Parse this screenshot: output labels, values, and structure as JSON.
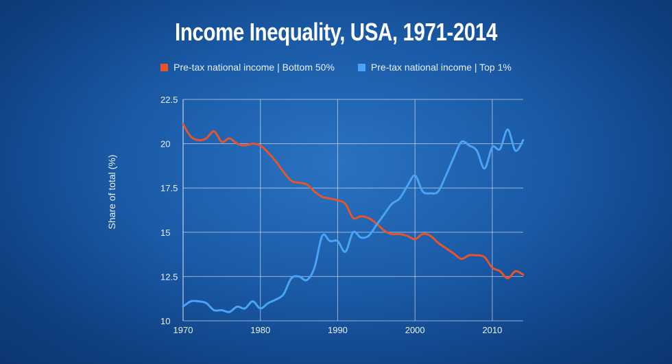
{
  "chart_data": {
    "type": "line",
    "title": "Income Inequality, USA, 1971-2014",
    "xlabel": "",
    "ylabel": "Share of total (%)",
    "xlim": [
      1970,
      2014
    ],
    "ylim": [
      10,
      22.5
    ],
    "x_ticks": [
      "1970",
      "1980",
      "1990",
      "2000",
      "2010"
    ],
    "y_ticks": [
      "10",
      "12.5",
      "15",
      "17.5",
      "20",
      "22.5"
    ],
    "grid": true,
    "legend_position": "top-center",
    "series": [
      {
        "name": "Pre-tax national income | Bottom 50%",
        "color": "#e8542a",
        "x": [
          1970,
          1971,
          1972,
          1973,
          1974,
          1975,
          1976,
          1977,
          1978,
          1979,
          1980,
          1981,
          1982,
          1983,
          1984,
          1985,
          1986,
          1987,
          1988,
          1989,
          1990,
          1991,
          1992,
          1993,
          1994,
          1995,
          1996,
          1997,
          1998,
          1999,
          2000,
          2001,
          2002,
          2003,
          2004,
          2005,
          2006,
          2007,
          2008,
          2009,
          2010,
          2011,
          2012,
          2013,
          2014
        ],
        "values": [
          21.1,
          20.4,
          20.2,
          20.3,
          20.7,
          20.1,
          20.3,
          20.0,
          19.9,
          20.0,
          19.9,
          19.5,
          19.0,
          18.4,
          17.9,
          17.8,
          17.7,
          17.3,
          17.0,
          16.9,
          16.8,
          16.6,
          15.8,
          15.9,
          15.8,
          15.5,
          15.1,
          14.9,
          14.9,
          14.8,
          14.6,
          14.9,
          14.8,
          14.4,
          14.1,
          13.8,
          13.5,
          13.7,
          13.7,
          13.6,
          13.0,
          12.8,
          12.4,
          12.8,
          12.6
        ]
      },
      {
        "name": "Pre-tax national income | Top 1%",
        "color": "#4aa3f5",
        "x": [
          1970,
          1971,
          1972,
          1973,
          1974,
          1975,
          1976,
          1977,
          1978,
          1979,
          1980,
          1981,
          1982,
          1983,
          1984,
          1985,
          1986,
          1987,
          1988,
          1989,
          1990,
          1991,
          1992,
          1993,
          1994,
          1995,
          1996,
          1997,
          1998,
          1999,
          2000,
          2001,
          2002,
          2003,
          2004,
          2005,
          2006,
          2007,
          2008,
          2009,
          2010,
          2011,
          2012,
          2013,
          2014
        ],
        "values": [
          10.8,
          11.1,
          11.1,
          11.0,
          10.6,
          10.6,
          10.5,
          10.8,
          10.7,
          11.1,
          10.7,
          11.0,
          11.2,
          11.5,
          12.4,
          12.5,
          12.3,
          13.0,
          14.8,
          14.5,
          14.5,
          13.9,
          15.0,
          14.7,
          14.8,
          15.4,
          16.0,
          16.6,
          16.9,
          17.6,
          18.2,
          17.3,
          17.2,
          17.3,
          18.2,
          19.2,
          20.1,
          19.9,
          19.6,
          18.6,
          19.8,
          19.7,
          20.8,
          19.6,
          20.2
        ]
      }
    ]
  }
}
